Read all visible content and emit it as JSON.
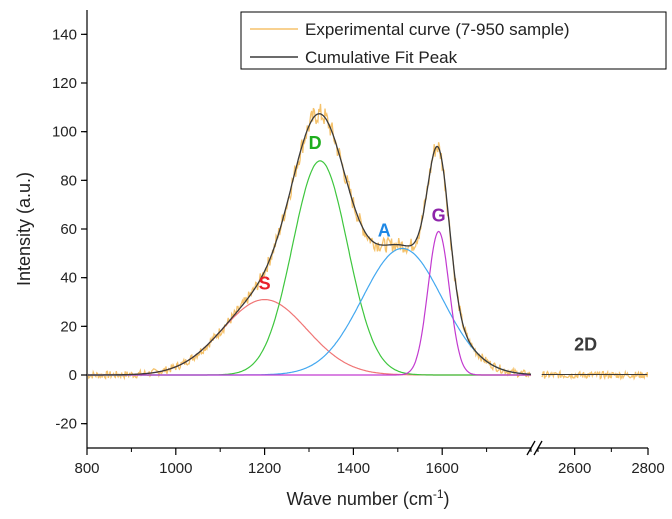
{
  "chart_data": {
    "type": "line",
    "xlabel": "Wave number (cm",
    "xlabel_sup": "-1",
    "xlabel_end": ")",
    "ylabel": "Intensity (a.u.)",
    "ylim": [
      -30,
      150
    ],
    "y_ticks": [
      -20,
      0,
      20,
      40,
      60,
      80,
      100,
      120,
      140
    ],
    "x_segments": [
      {
        "range": [
          800,
          1800
        ],
        "ticks": [
          800,
          1000,
          1200,
          1400,
          1600
        ]
      },
      {
        "range": [
          2500,
          2800
        ],
        "ticks": [
          2600,
          2800
        ]
      }
    ],
    "legend": {
      "placement": "top-right",
      "entries": [
        {
          "name": "Experimental curve (7-950 sample)",
          "color": "#f5c26b"
        },
        {
          "name": "Cumulative Fit Peak",
          "color": "#3a3a3a"
        }
      ]
    },
    "peaks": [
      {
        "label": "S",
        "center": 1200,
        "amplitude": 31,
        "sigma": 95,
        "color": "#f07575",
        "label_color": "#e8202a"
      },
      {
        "label": "D",
        "center": 1325,
        "amplitude": 88,
        "sigma": 62,
        "color": "#3ec63e",
        "label_color": "#1fae1f"
      },
      {
        "label": "A",
        "center": 1510,
        "amplitude": 52,
        "sigma": 90,
        "color": "#43a8f0",
        "label_color": "#1e88e5"
      },
      {
        "label": "G",
        "center": 1592,
        "amplitude": 59,
        "sigma": 24,
        "color": "#c23ad0",
        "label_color": "#8e24aa"
      }
    ],
    "annotations": [
      {
        "text": "2D",
        "x": 2630,
        "y": 10
      }
    ],
    "experimental_noise_amplitude": 1.6
  }
}
